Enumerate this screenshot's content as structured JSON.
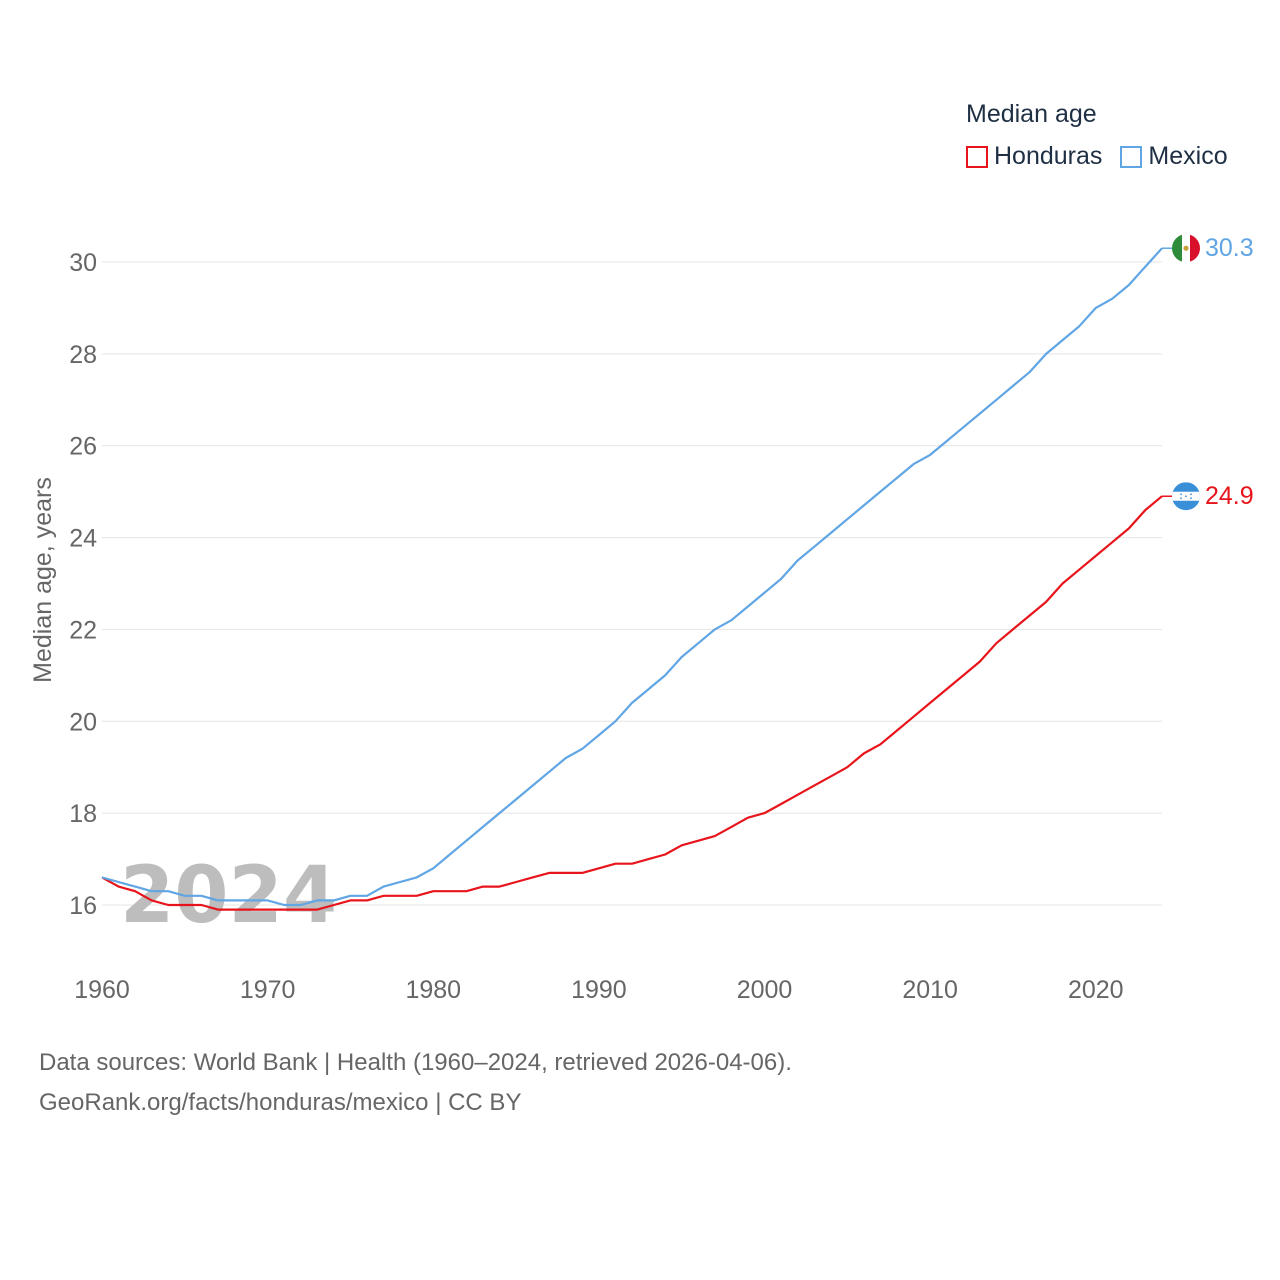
{
  "chart_data": {
    "type": "line",
    "legend_title": "Median age",
    "ylabel": "Median age, years",
    "xlabel": "",
    "xlim": [
      1960,
      2024
    ],
    "ylim": [
      15,
      31
    ],
    "x_ticks": [
      1960,
      1970,
      1980,
      1990,
      2000,
      2010,
      2020
    ],
    "y_ticks": [
      16,
      18,
      20,
      22,
      24,
      26,
      28,
      30
    ],
    "watermark_year": "2024",
    "series": [
      {
        "name": "Honduras",
        "color": "#e8141b",
        "end_label": "24.9",
        "flag_icon": "honduras-flag-icon",
        "x": [
          1960,
          1961,
          1962,
          1963,
          1964,
          1965,
          1966,
          1967,
          1968,
          1969,
          1970,
          1971,
          1972,
          1973,
          1974,
          1975,
          1976,
          1977,
          1978,
          1979,
          1980,
          1981,
          1982,
          1983,
          1984,
          1985,
          1986,
          1987,
          1988,
          1989,
          1990,
          1991,
          1992,
          1993,
          1994,
          1995,
          1996,
          1997,
          1998,
          1999,
          2000,
          2001,
          2002,
          2003,
          2004,
          2005,
          2006,
          2007,
          2008,
          2009,
          2010,
          2011,
          2012,
          2013,
          2014,
          2015,
          2016,
          2017,
          2018,
          2019,
          2020,
          2021,
          2022,
          2023,
          2024
        ],
        "values": [
          16.6,
          16.4,
          16.3,
          16.1,
          16.0,
          16.0,
          16.0,
          15.9,
          15.9,
          15.9,
          15.9,
          15.9,
          15.9,
          15.9,
          16.0,
          16.1,
          16.1,
          16.2,
          16.2,
          16.2,
          16.3,
          16.3,
          16.3,
          16.4,
          16.4,
          16.5,
          16.6,
          16.7,
          16.7,
          16.7,
          16.8,
          16.9,
          16.9,
          17.0,
          17.1,
          17.3,
          17.4,
          17.5,
          17.7,
          17.9,
          18.0,
          18.2,
          18.4,
          18.6,
          18.8,
          19.0,
          19.3,
          19.5,
          19.8,
          20.1,
          20.4,
          20.7,
          21.0,
          21.3,
          21.7,
          22.0,
          22.3,
          22.6,
          23.0,
          23.3,
          23.6,
          23.9,
          24.2,
          24.6,
          24.9
        ]
      },
      {
        "name": "Mexico",
        "color": "#60a5e4",
        "end_label": "30.3",
        "flag_icon": "mexico-flag-icon",
        "x": [
          1960,
          1961,
          1962,
          1963,
          1964,
          1965,
          1966,
          1967,
          1968,
          1969,
          1970,
          1971,
          1972,
          1973,
          1974,
          1975,
          1976,
          1977,
          1978,
          1979,
          1980,
          1981,
          1982,
          1983,
          1984,
          1985,
          1986,
          1987,
          1988,
          1989,
          1990,
          1991,
          1992,
          1993,
          1994,
          1995,
          1996,
          1997,
          1998,
          1999,
          2000,
          2001,
          2002,
          2003,
          2004,
          2005,
          2006,
          2007,
          2008,
          2009,
          2010,
          2011,
          2012,
          2013,
          2014,
          2015,
          2016,
          2017,
          2018,
          2019,
          2020,
          2021,
          2022,
          2023,
          2024
        ],
        "values": [
          16.6,
          16.5,
          16.4,
          16.3,
          16.3,
          16.2,
          16.2,
          16.1,
          16.1,
          16.1,
          16.1,
          16.0,
          16.0,
          16.1,
          16.1,
          16.2,
          16.2,
          16.4,
          16.5,
          16.6,
          16.8,
          17.1,
          17.4,
          17.7,
          18.0,
          18.3,
          18.6,
          18.9,
          19.2,
          19.4,
          19.7,
          20.0,
          20.4,
          20.7,
          21.0,
          21.4,
          21.7,
          22.0,
          22.2,
          22.5,
          22.8,
          23.1,
          23.5,
          23.8,
          24.1,
          24.4,
          24.7,
          25.0,
          25.3,
          25.6,
          25.8,
          26.1,
          26.4,
          26.7,
          27.0,
          27.3,
          27.6,
          28.0,
          28.3,
          28.6,
          29.0,
          29.2,
          29.5,
          29.9,
          30.3
        ]
      }
    ]
  },
  "footer": {
    "sources": "Data sources: World Bank | Health (1960–2024, retrieved 2026-04-06).",
    "credit": "GeoRank.org/facts/honduras/mexico | CC BY"
  }
}
